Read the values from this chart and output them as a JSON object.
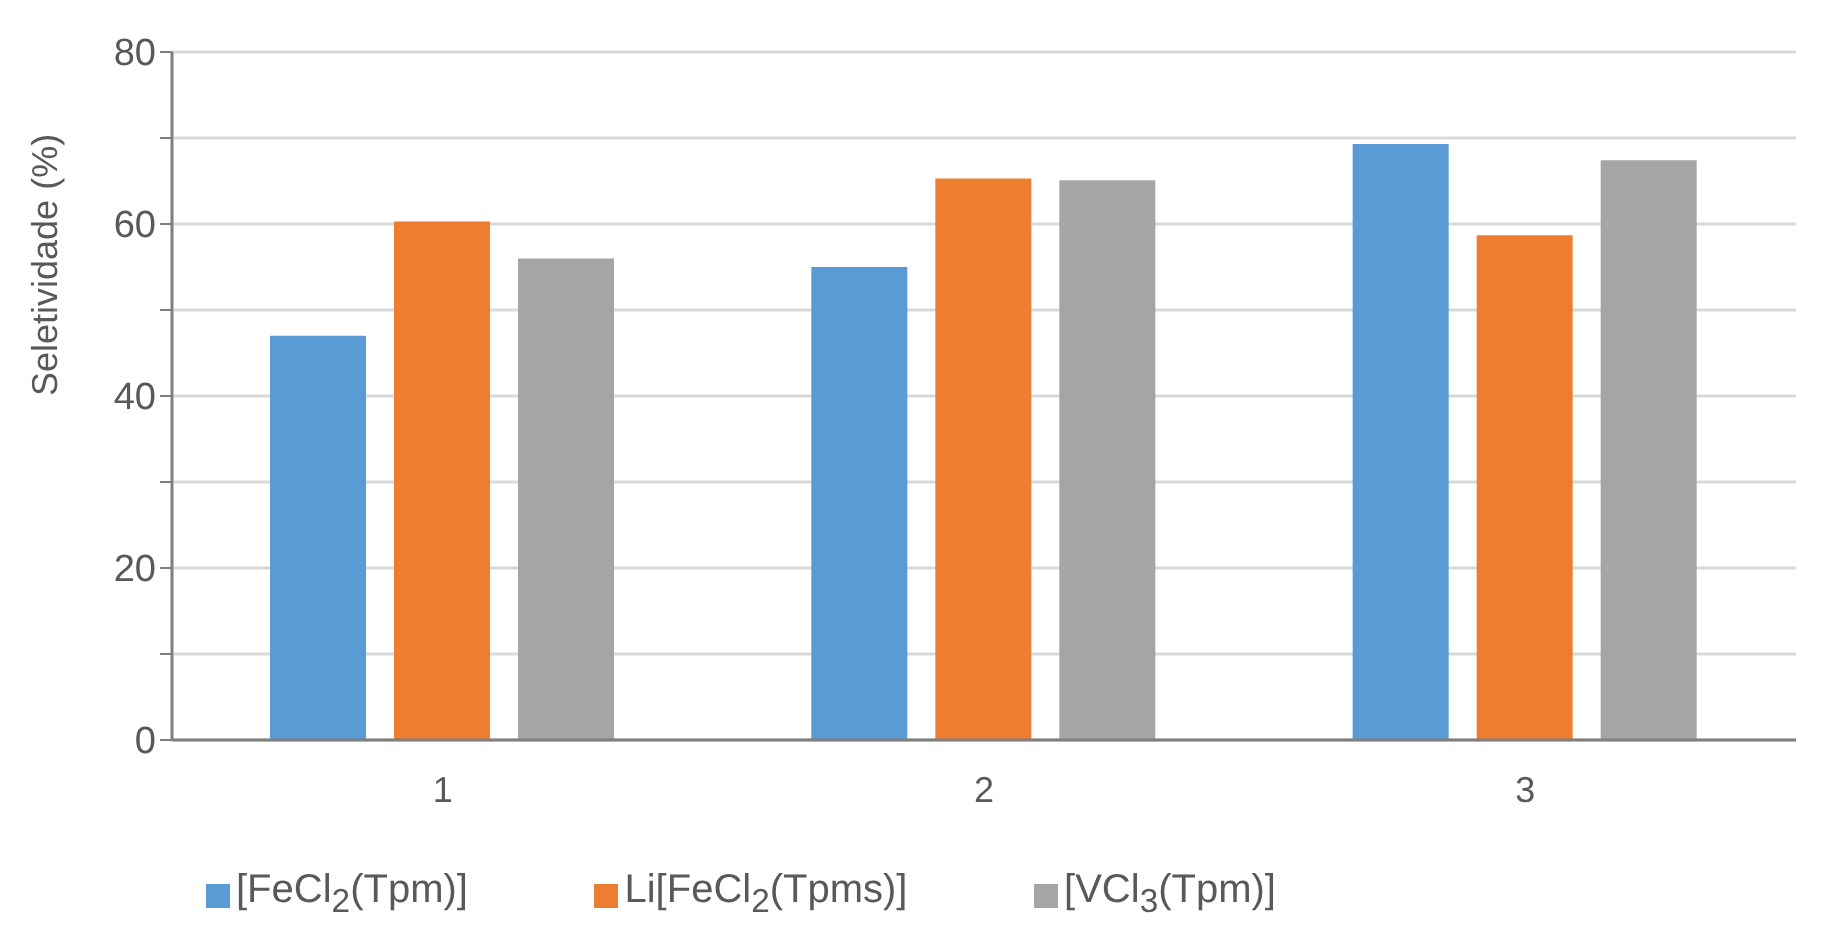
{
  "chart_data": {
    "type": "bar",
    "ylabel": "Seletividade (%)",
    "categories": [
      "1",
      "2",
      "3"
    ],
    "series": [
      {
        "name": "[FeCl$_{2}$(Tpm)]",
        "color": "#5b9bd5",
        "values": [
          47,
          55,
          69.3
        ]
      },
      {
        "name": "Li[FeCl$_{2}$(Tpms)]",
        "color": "#ed7d31",
        "values": [
          60.3,
          65.3,
          58.7
        ]
      },
      {
        "name": "[VCl$_{3}$(Tpm)]",
        "color": "#a5a5a5",
        "values": [
          56,
          65.1,
          67.4
        ]
      }
    ],
    "ylim": [
      0,
      80
    ],
    "yticks": [
      0,
      {
        "value": 10,
        "label": null
      },
      20,
      {
        "value": 30,
        "label": null
      },
      40,
      {
        "value": 50,
        "label": null
      },
      60,
      {
        "value": 70,
        "label": null
      },
      80
    ],
    "grid": "y",
    "legend": "bottom"
  }
}
